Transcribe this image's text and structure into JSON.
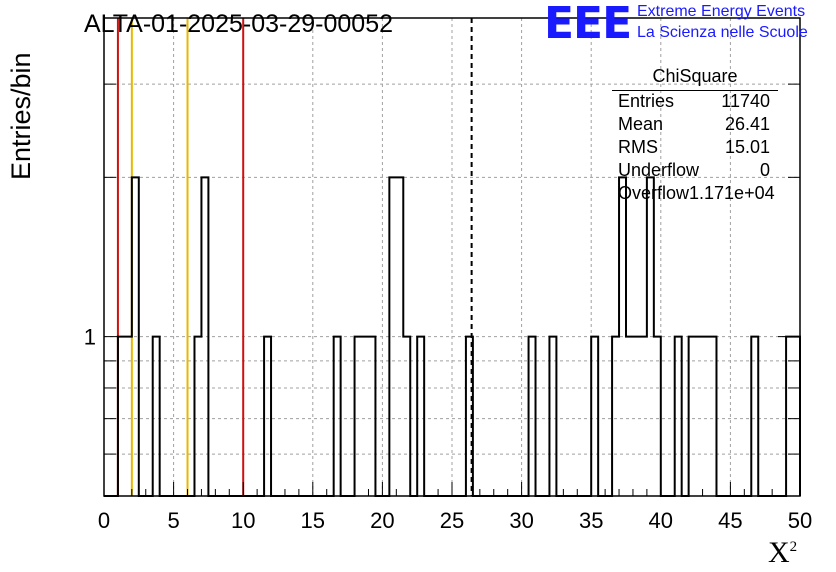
{
  "chart_data": {
    "type": "bar",
    "style": "step-histogram",
    "title": "ALTA-01-2025-03-29-00052",
    "xlabel": "X",
    "xlabel_superscript": "2",
    "ylabel": "Entries/bin",
    "xlim": [
      0,
      50
    ],
    "ylim": [
      0.5,
      4
    ],
    "yscale": "log",
    "grid": true,
    "bin_width": 0.5,
    "x_ticks": [
      "0",
      "5",
      "10",
      "15",
      "20",
      "25",
      "30",
      "35",
      "40",
      "45",
      "50"
    ],
    "y_tick_labels": [
      "1"
    ],
    "bins": [
      {
        "x": 1.0,
        "y": 1
      },
      {
        "x": 1.5,
        "y": 1
      },
      {
        "x": 2.0,
        "y": 2
      },
      {
        "x": 3.5,
        "y": 1
      },
      {
        "x": 6.5,
        "y": 1
      },
      {
        "x": 7.0,
        "y": 2
      },
      {
        "x": 11.5,
        "y": 1
      },
      {
        "x": 16.5,
        "y": 1
      },
      {
        "x": 18.0,
        "y": 1
      },
      {
        "x": 18.5,
        "y": 1
      },
      {
        "x": 19.0,
        "y": 1
      },
      {
        "x": 20.5,
        "y": 2
      },
      {
        "x": 21.0,
        "y": 2
      },
      {
        "x": 21.5,
        "y": 1
      },
      {
        "x": 22.5,
        "y": 1
      },
      {
        "x": 26.0,
        "y": 1
      },
      {
        "x": 30.5,
        "y": 1
      },
      {
        "x": 32.0,
        "y": 1
      },
      {
        "x": 35.0,
        "y": 1
      },
      {
        "x": 36.5,
        "y": 1
      },
      {
        "x": 37.0,
        "y": 2
      },
      {
        "x": 37.5,
        "y": 1
      },
      {
        "x": 38.0,
        "y": 1
      },
      {
        "x": 38.5,
        "y": 1
      },
      {
        "x": 39.0,
        "y": 2
      },
      {
        "x": 39.5,
        "y": 1
      },
      {
        "x": 41.0,
        "y": 1
      },
      {
        "x": 42.0,
        "y": 1
      },
      {
        "x": 42.5,
        "y": 1
      },
      {
        "x": 43.0,
        "y": 1
      },
      {
        "x": 43.5,
        "y": 1
      },
      {
        "x": 46.5,
        "y": 1
      },
      {
        "x": 49.0,
        "y": 1
      },
      {
        "x": 49.5,
        "y": 1
      }
    ],
    "vertical_lines": [
      {
        "x": 1.0,
        "color": "#d01010",
        "style": "solid"
      },
      {
        "x": 2.0,
        "color": "#e8b800",
        "style": "solid"
      },
      {
        "x": 6.0,
        "color": "#e8b800",
        "style": "solid"
      },
      {
        "x": 10.0,
        "color": "#d01010",
        "style": "solid"
      },
      {
        "x": 26.41,
        "color": "#000000",
        "style": "dashed"
      }
    ]
  },
  "logo": {
    "text": "EEE",
    "line1": "Extreme Energy Events",
    "line2": "La Scienza nelle Scuole",
    "color": "#1a1aff"
  },
  "stats": {
    "title": "ChiSquare",
    "rows": [
      {
        "label": "Entries",
        "value": "11740"
      },
      {
        "label": "Mean",
        "value": "26.41"
      },
      {
        "label": "RMS",
        "value": "15.01"
      },
      {
        "label": "Underflow",
        "value": "0"
      },
      {
        "label": "Overflow",
        "value": "1.171e+04"
      }
    ]
  }
}
